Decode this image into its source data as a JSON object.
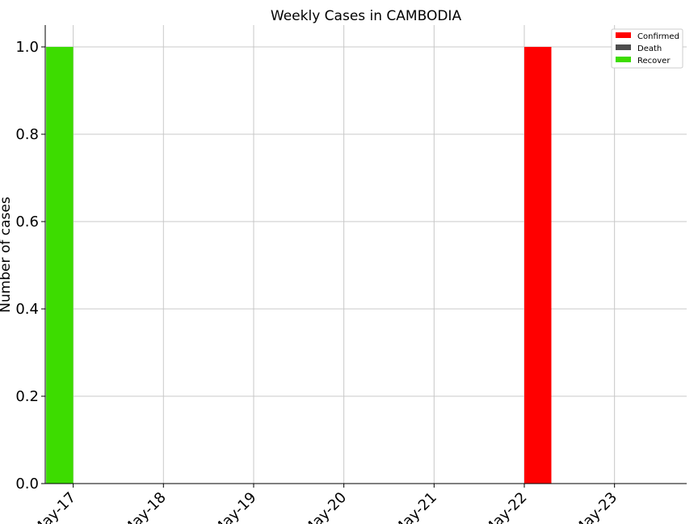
{
  "chart_data": {
    "type": "bar",
    "title": "Weekly Cases in CAMBODIA",
    "xlabel": "",
    "ylabel": "Number of cases",
    "x_ticks": [
      "May-17",
      "May-18",
      "May-19",
      "May-20",
      "May-21",
      "May-22",
      "May-23"
    ],
    "xlim": [
      -0.31,
      6.8
    ],
    "ylim": [
      0,
      1.05
    ],
    "y_ticks": [
      0.0,
      0.2,
      0.4,
      0.6,
      0.8,
      1.0
    ],
    "grid": true,
    "legend_position": "top-right",
    "series": [
      {
        "name": "Confirmed",
        "color": "#ff0000",
        "bars": [
          {
            "x": 5.0,
            "width": 0.3,
            "value": 1.0
          }
        ]
      },
      {
        "name": "Death",
        "color": "#4d4d4d",
        "bars": []
      },
      {
        "name": "Recover",
        "color": "#3ddc00",
        "bars": [
          {
            "x": -0.3,
            "width": 0.3,
            "value": 1.0
          }
        ]
      }
    ]
  }
}
